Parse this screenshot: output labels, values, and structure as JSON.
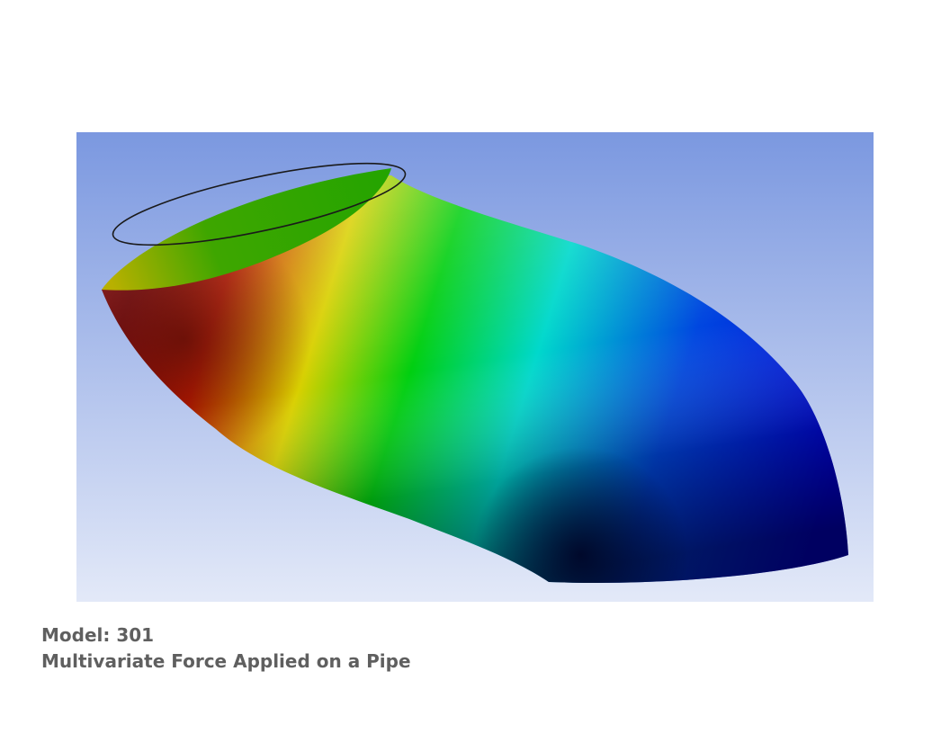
{
  "figure": {
    "background_colors": {
      "top": "#7b98e0",
      "bottom": "#e3e9f8"
    },
    "contour_colors": [
      "#9e0000",
      "#d02a00",
      "#e5e500",
      "#00d800",
      "#00e0d8",
      "#0000e0",
      "#000040"
    ],
    "outline_color": "#1a1a1a"
  },
  "caption": {
    "model": "Model: 301",
    "title": "Multivariate Force Applied on a Pipe"
  }
}
